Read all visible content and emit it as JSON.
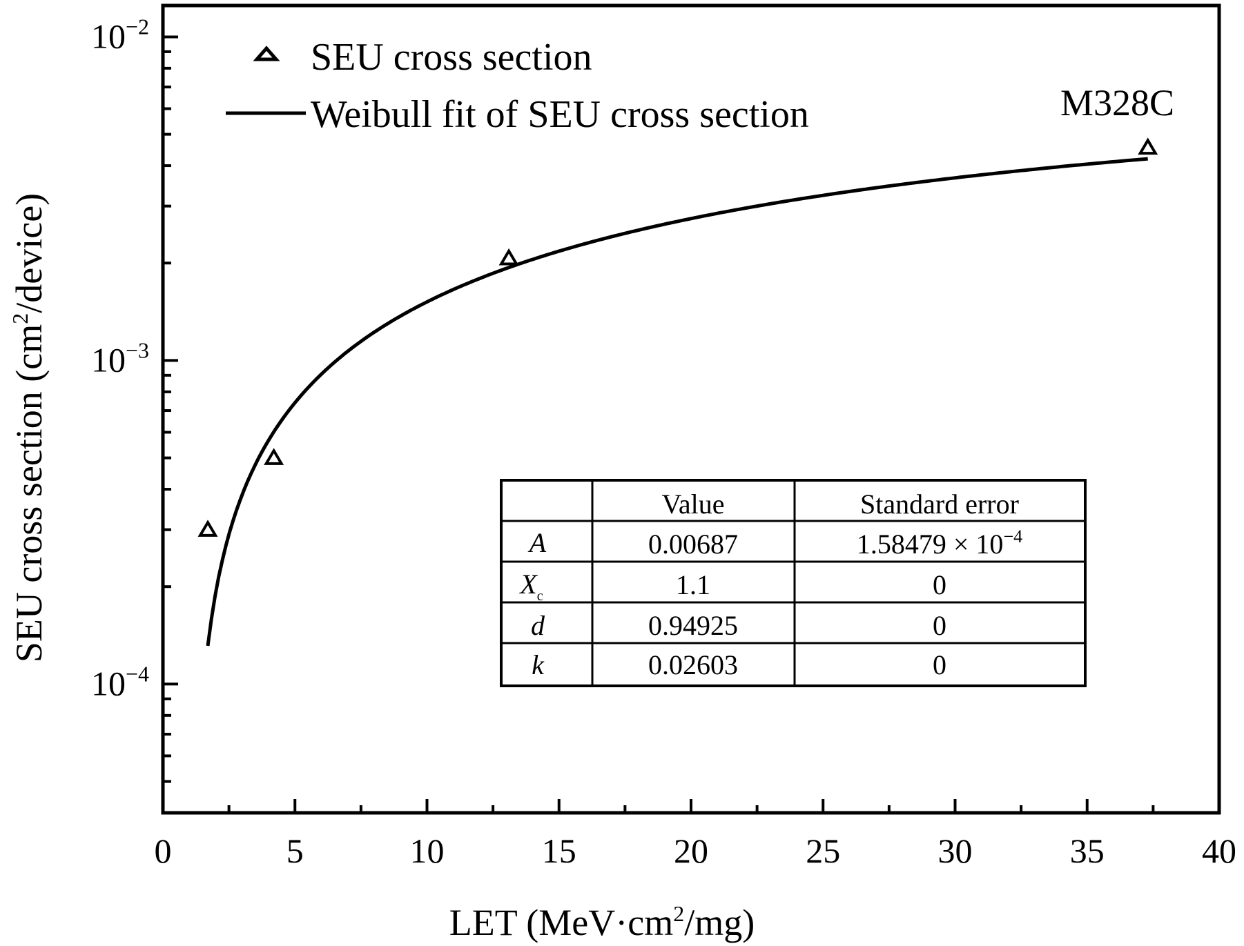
{
  "chart_data": {
    "type": "scatter",
    "xlabel": {
      "pre": "LET (MeV·cm",
      "sup": "2",
      "post": "/mg)"
    },
    "ylabel": {
      "pre": "SEU cross section (cm",
      "sup": "2",
      "post": "/device)"
    },
    "xlim": [
      0,
      40
    ],
    "ylim": [
      4e-05,
      0.0125
    ],
    "yscale": "log",
    "x_ticks": [
      0,
      5,
      10,
      15,
      20,
      25,
      30,
      35,
      40
    ],
    "x_tick_labels": [
      "0",
      "5",
      "10",
      "15",
      "20",
      "25",
      "30",
      "35",
      "40"
    ],
    "y_ticks": [
      0.0001,
      0.001,
      0.01
    ],
    "y_tick_labels": [
      {
        "base": "10",
        "exp": "−4"
      },
      {
        "base": "10",
        "exp": "−3"
      },
      {
        "base": "10",
        "exp": "−2"
      }
    ],
    "annotation": "M328C",
    "legend_position": "top-left",
    "series": [
      {
        "name": "SEU cross section",
        "marker": "open-triangle",
        "points": [
          {
            "x": 1.7,
            "y": 0.0003
          },
          {
            "x": 4.2,
            "y": 0.0005
          },
          {
            "x": 13.1,
            "y": 0.00207
          },
          {
            "x": 37.3,
            "y": 0.00455
          }
        ]
      },
      {
        "name": "Weibull fit of SEU cross section",
        "style": "solid-line",
        "model": "weibull",
        "params": {
          "A": 0.00687,
          "Xc": 1.1,
          "d": 0.94925,
          "k": 0.02603
        },
        "x_start": 1.7,
        "x_end": 37.3
      }
    ],
    "table": {
      "headers": [
        "",
        "Value",
        "Standard error"
      ],
      "rows": [
        {
          "param": "A",
          "sub": "",
          "value": "0.00687",
          "error": "1.58479 × 10",
          "error_exp": "−4"
        },
        {
          "param": "X",
          "sub": "c",
          "value": "1.1",
          "error": "0",
          "error_exp": ""
        },
        {
          "param": "d",
          "sub": "",
          "value": "0.94925",
          "error": "0",
          "error_exp": ""
        },
        {
          "param": "k",
          "sub": "",
          "value": "0.02603",
          "error": "0",
          "error_exp": ""
        }
      ]
    }
  }
}
